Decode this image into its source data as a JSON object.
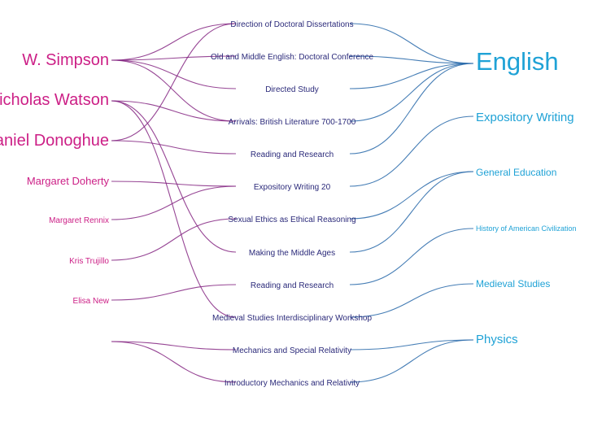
{
  "colors": {
    "instructor": "#cc1f86",
    "course": "#2b2a7a",
    "department": "#1fa2d6"
  },
  "instructors": [
    {
      "id": "simpson",
      "label": "W. Simpson"
    },
    {
      "id": "watson",
      "label": "Nicholas Watson"
    },
    {
      "id": "donoghue",
      "label": "Daniel Donoghue"
    },
    {
      "id": "doherty",
      "label": "Margaret Doherty"
    },
    {
      "id": "rennix",
      "label": "Margaret Rennix"
    },
    {
      "id": "trujillo",
      "label": "Kris Trujillo"
    },
    {
      "id": "new",
      "label": "Elisa New"
    },
    {
      "id": "physics_inst",
      "label": ""
    }
  ],
  "courses": [
    {
      "id": "c1",
      "label": "Direction of Doctoral Dissertations"
    },
    {
      "id": "c2",
      "label": "Old and Middle English: Doctoral Conference"
    },
    {
      "id": "c3",
      "label": "Directed Study"
    },
    {
      "id": "c4",
      "label": "Arrivals: British Literature 700-1700"
    },
    {
      "id": "c5",
      "label": "Reading and Research"
    },
    {
      "id": "c6",
      "label": "Expository Writing 20"
    },
    {
      "id": "c7",
      "label": "Sexual Ethics as Ethical Reasoning"
    },
    {
      "id": "c8",
      "label": "Making the Middle Ages"
    },
    {
      "id": "c9",
      "label": "Reading and Research"
    },
    {
      "id": "c10",
      "label": "Medieval Studies Interdisciplinary Workshop"
    },
    {
      "id": "c11",
      "label": "Mechanics and Special Relativity"
    },
    {
      "id": "c12",
      "label": "Introductory Mechanics and Relativity"
    }
  ],
  "departments": [
    {
      "id": "english",
      "label": "English"
    },
    {
      "id": "expos",
      "label": "Expository Writing"
    },
    {
      "id": "gened",
      "label": "General Education"
    },
    {
      "id": "hac",
      "label": "History of American Civilization"
    },
    {
      "id": "medieval",
      "label": "Medieval Studies"
    },
    {
      "id": "physics",
      "label": "Physics"
    }
  ],
  "instructor_course_links": [
    [
      "simpson",
      "c1"
    ],
    [
      "simpson",
      "c2"
    ],
    [
      "simpson",
      "c3"
    ],
    [
      "simpson",
      "c4"
    ],
    [
      "watson",
      "c4"
    ],
    [
      "watson",
      "c8"
    ],
    [
      "watson",
      "c10"
    ],
    [
      "donoghue",
      "c1"
    ],
    [
      "donoghue",
      "c5"
    ],
    [
      "doherty",
      "c6"
    ],
    [
      "rennix",
      "c6"
    ],
    [
      "trujillo",
      "c7"
    ],
    [
      "new",
      "c9"
    ],
    [
      "physics_inst",
      "c11"
    ],
    [
      "physics_inst",
      "c12"
    ]
  ],
  "course_department_links": [
    [
      "c1",
      "english"
    ],
    [
      "c2",
      "english"
    ],
    [
      "c3",
      "english"
    ],
    [
      "c4",
      "english"
    ],
    [
      "c5",
      "english"
    ],
    [
      "c6",
      "expos"
    ],
    [
      "c7",
      "gened"
    ],
    [
      "c8",
      "gened"
    ],
    [
      "c9",
      "hac"
    ],
    [
      "c10",
      "medieval"
    ],
    [
      "c11",
      "physics"
    ],
    [
      "c12",
      "physics"
    ]
  ]
}
